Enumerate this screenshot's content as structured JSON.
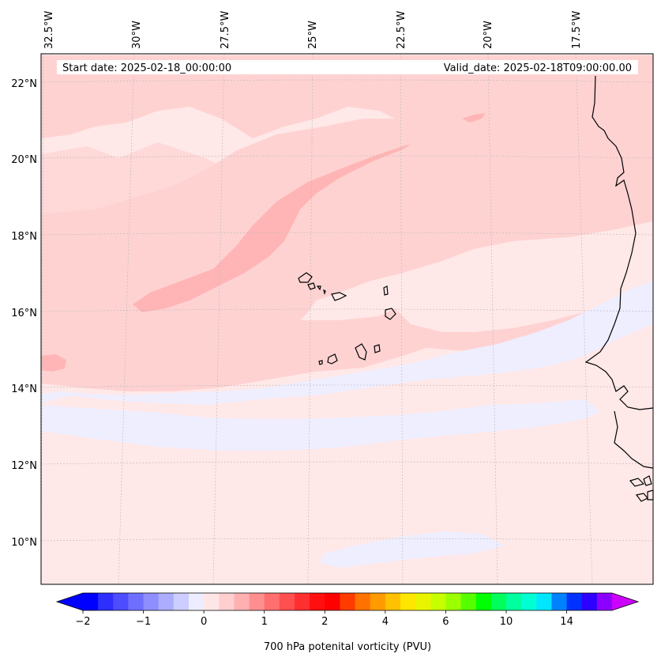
{
  "map": {
    "start_date": "Start date: 2025-02-18_00:00:00",
    "valid_date": "Valid_date: 2025-02-18T09:00:00.00",
    "longitude_labels": [
      "32.5°W",
      "30°W",
      "27.5°W",
      "25°W",
      "22.5°W",
      "20°W",
      "17.5°W"
    ],
    "latitude_labels": [
      "22°N",
      "20°N",
      "18°N",
      "16°N",
      "14°N",
      "12°N",
      "10°N"
    ],
    "colorbar": {
      "label": "700 hPa potenital vorticity (PVU)",
      "tick_labels": [
        "−2",
        "−1",
        "0",
        "1",
        "2",
        "4",
        "6",
        "10",
        "14"
      ],
      "colors": [
        "#0000ff",
        "#2e2eff",
        "#4d4dff",
        "#6f6fff",
        "#8e8eff",
        "#adadff",
        "#cdcdff",
        "#ededff",
        "#ffe6e6",
        "#ffcfcf",
        "#ffb1b1",
        "#ff8f8f",
        "#ff6f6f",
        "#ff4f4f",
        "#ff2f2f",
        "#ff0f0f",
        "#ff0000",
        "#ff3c00",
        "#ff7200",
        "#ff9b00",
        "#ffc100",
        "#ffe600",
        "#e9f500",
        "#c6ff00",
        "#9cff00",
        "#56ff00",
        "#00ff00",
        "#00ff5a",
        "#00ff9e",
        "#00ffd2",
        "#00e6ff",
        "#0082ff",
        "#0032ff",
        "#2d00ff",
        "#8c00ff"
      ],
      "extend_low_color": "#0000ff",
      "extend_high_color": "#cc00ff"
    },
    "colors": {
      "background_field": "#ffe8e8",
      "pv_light": "#ffd2d2",
      "pv_mid": "#ffb5b5",
      "negative": "#eeeeff",
      "coastline": "#000000"
    }
  }
}
